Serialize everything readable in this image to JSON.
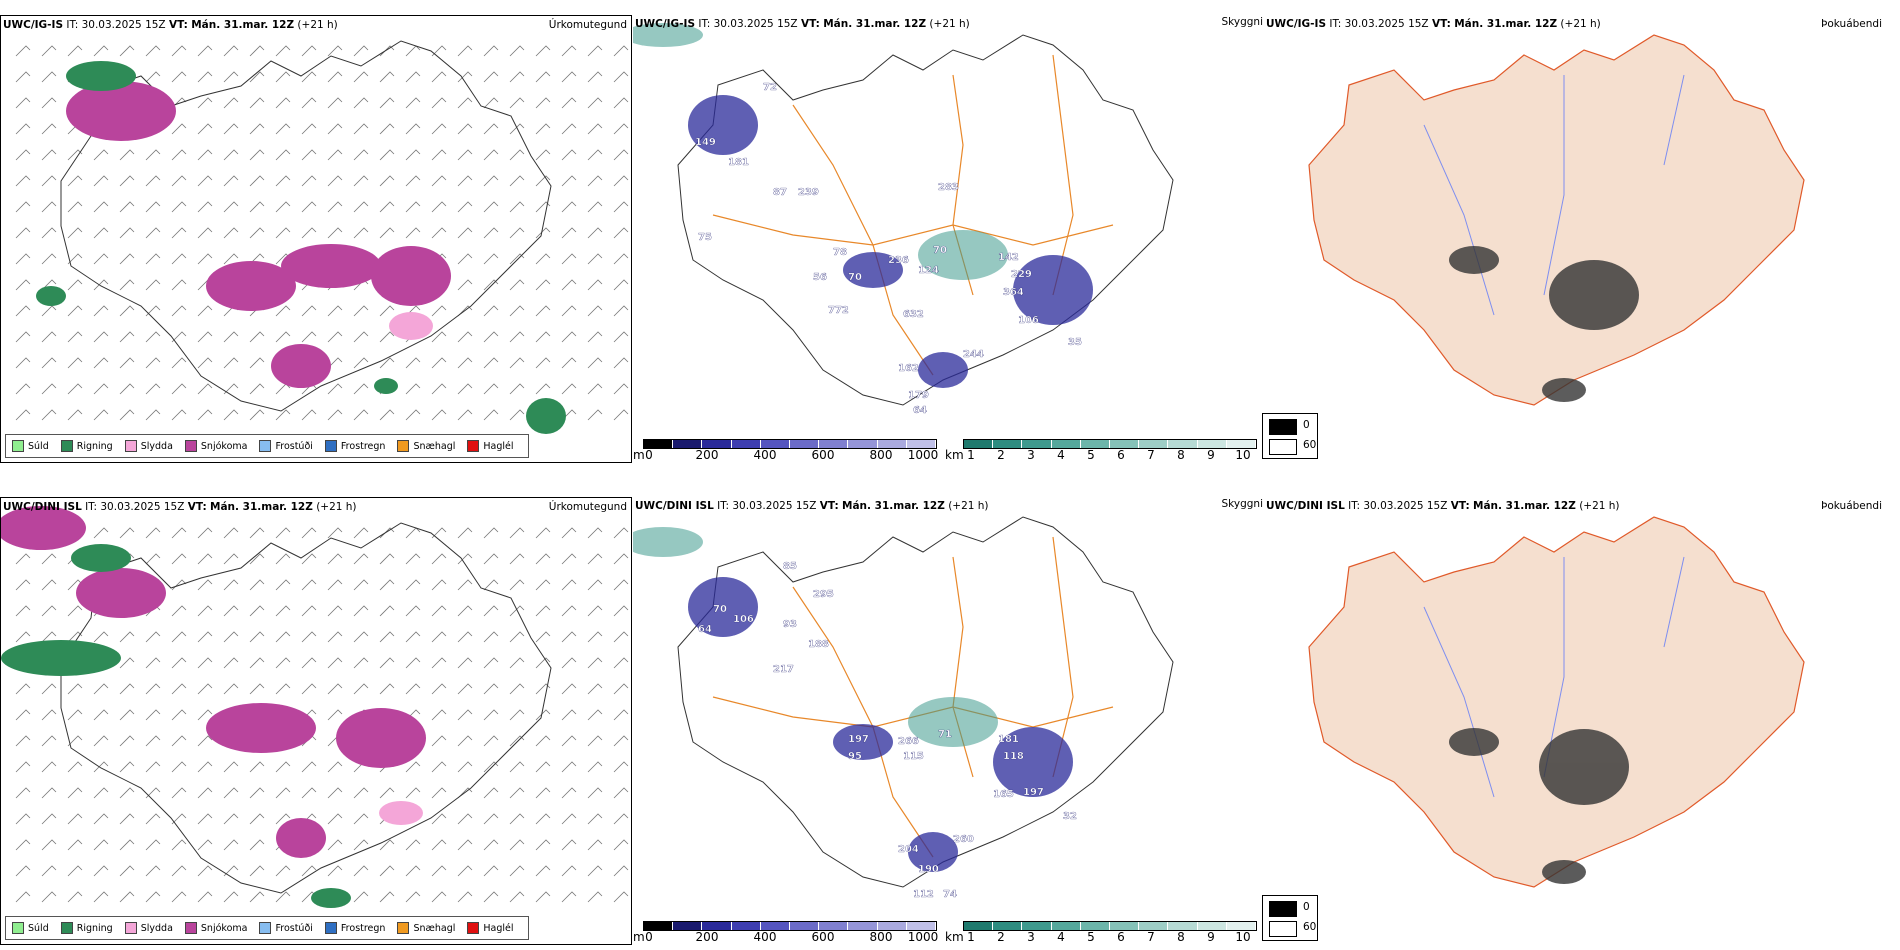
{
  "rows": [
    {
      "model": "UWC/IG-IS",
      "it_label": "IT:",
      "it_value": "30.03.2025 15Z",
      "vt_label": "VT:",
      "vt_value": "Mán. 31.mar. 12Z",
      "lead": "(+21 h)",
      "precip_title": "Úrkomutegund",
      "vis_title": "Skyggni",
      "fog_title": "Þokuábendi",
      "ceiling_labels": [
        "72",
        "149",
        "181",
        "87",
        "239",
        "75",
        "78",
        "56",
        "70",
        "236",
        "124",
        "70",
        "283",
        "142",
        "229",
        "364",
        "106",
        "35",
        "772",
        "632",
        "162",
        "244",
        "179",
        "64"
      ]
    },
    {
      "model": "UWC/DINI ISL",
      "it_label": "IT:",
      "it_value": "30.03.2025 15Z",
      "vt_label": "VT:",
      "vt_value": "Mán. 31.mar. 12Z",
      "lead": "(+21 h)",
      "precip_title": "Úrkomutegund",
      "vis_title": "Skyggni",
      "fog_title": "Þokuábendi",
      "ceiling_labels": [
        "85",
        "295",
        "70",
        "64",
        "106",
        "93",
        "217",
        "188",
        "197",
        "95",
        "266",
        "115",
        "71",
        "181",
        "118",
        "165",
        "197",
        "32",
        "204",
        "260",
        "190",
        "112",
        "74"
      ]
    }
  ],
  "precip_legend": [
    {
      "label": "Súld",
      "color": "#90ee90"
    },
    {
      "label": "Rigning",
      "color": "#2e8b57"
    },
    {
      "label": "Slydda",
      "color": "#f4a6d8"
    },
    {
      "label": "Snjókoma",
      "color": "#b9449c"
    },
    {
      "label": "Frostúði",
      "color": "#87bdf0"
    },
    {
      "label": "Frostregn",
      "color": "#2f6fc2"
    },
    {
      "label": "Snæhagl",
      "color": "#f09a20"
    },
    {
      "label": "Haglél",
      "color": "#e01010"
    }
  ],
  "ceiling_bar": {
    "unit": "m",
    "ticks": [
      "0",
      "200",
      "400",
      "600",
      "800",
      "1000"
    ],
    "colors": [
      "#000000",
      "#1a1a6e",
      "#2a2a9a",
      "#3d3db0",
      "#5555c0",
      "#6b6bc8",
      "#8080d0",
      "#9595d8",
      "#aaaadf",
      "#c0c0e8"
    ]
  },
  "vis_bar": {
    "unit": "km",
    "ticks": [
      "1",
      "2",
      "3",
      "4",
      "5",
      "6",
      "7",
      "8",
      "9",
      "10"
    ],
    "colors": [
      "#1f7a6e",
      "#2e8c80",
      "#3f9a8e",
      "#55a89c",
      "#6cb5aa",
      "#85c2b8",
      "#9ecec6",
      "#b6dad4",
      "#cce6e1",
      "#e3f1ef"
    ]
  },
  "fog_legend": [
    {
      "label": "0",
      "color": "#000000"
    },
    {
      "label": "60",
      "color": "#ffffff"
    }
  ]
}
